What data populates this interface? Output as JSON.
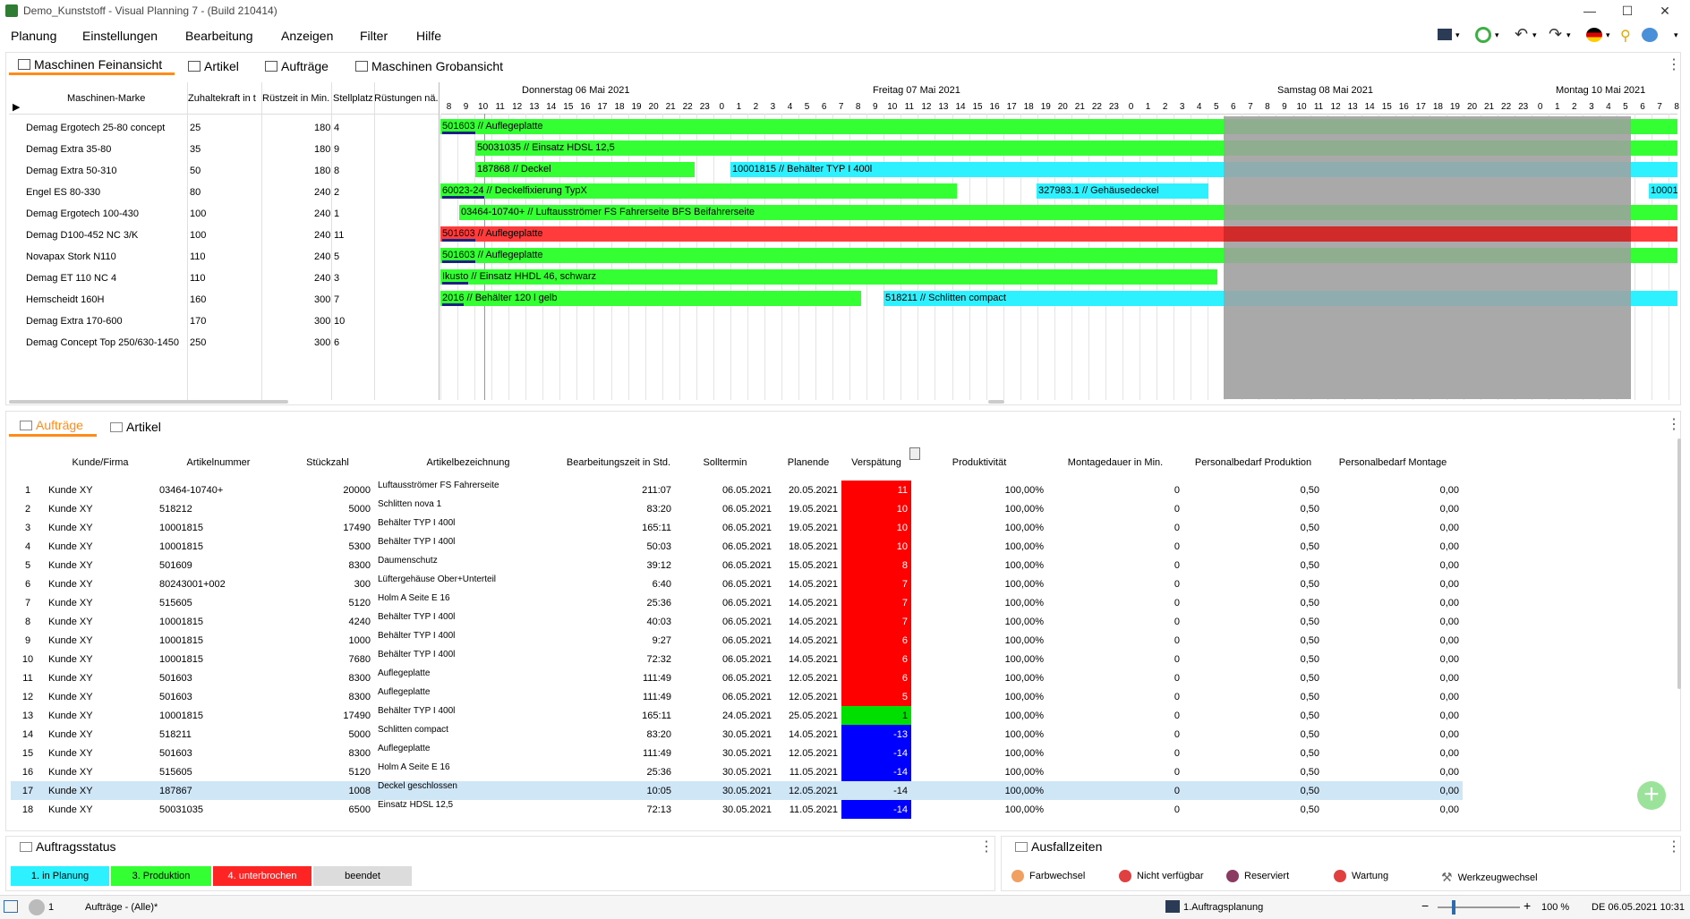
{
  "window": {
    "title": "Demo_Kunststoff - Visual Planning 7 - (Build 210414)"
  },
  "menu": [
    "Planung",
    "Einstellungen",
    "Bearbeitung",
    "Anzeigen",
    "Filter",
    "Hilfe"
  ],
  "top_tabs": [
    "Maschinen Feinansicht",
    "Artikel",
    "Aufträge",
    "Maschinen Grobansicht"
  ],
  "machine_headers": [
    "Maschinen-Marke",
    "Zuhaltekraft in t",
    "Rüstzeit in Min.",
    "Stellplatz",
    "Rüstungen nä."
  ],
  "machines": [
    {
      "name": "Demag Ergotech 25-80 concept",
      "force": "25",
      "setup": "180",
      "place": "4"
    },
    {
      "name": "Demag Extra 35-80",
      "force": "35",
      "setup": "180",
      "place": "9"
    },
    {
      "name": "Demag Extra 50-310",
      "force": "50",
      "setup": "180",
      "place": "8"
    },
    {
      "name": "Engel ES 80-330",
      "force": "80",
      "setup": "240",
      "place": "2"
    },
    {
      "name": "Demag Ergotech 100-430",
      "force": "100",
      "setup": "240",
      "place": "1"
    },
    {
      "name": "Demag D100-452 NC 3/K",
      "force": "100",
      "setup": "240",
      "place": "11"
    },
    {
      "name": "Novapax Stork N110",
      "force": "110",
      "setup": "240",
      "place": "5"
    },
    {
      "name": "Demag ET 110 NC 4",
      "force": "110",
      "setup": "240",
      "place": "3"
    },
    {
      "name": "Hemscheidt 160H",
      "force": "160",
      "setup": "300",
      "place": "7"
    },
    {
      "name": "Demag Extra 170-600",
      "force": "170",
      "setup": "300",
      "place": "10"
    },
    {
      "name": "Demag Concept Top 250/630-1450",
      "force": "250",
      "setup": "300",
      "place": "6"
    }
  ],
  "days": [
    "Donnerstag 06 Mai 2021",
    "Freitag 07 Mai 2021",
    "Samstag 08 Mai 2021",
    "Montag 10 Mai 2021"
  ],
  "hours": [
    "8",
    "9",
    "10",
    "11",
    "12",
    "13",
    "14",
    "15",
    "16",
    "17",
    "18",
    "19",
    "20",
    "21",
    "22",
    "23",
    "0",
    "1",
    "2",
    "3",
    "4",
    "5",
    "6",
    "7",
    "8",
    "9",
    "10",
    "11",
    "12",
    "13",
    "14",
    "15",
    "16",
    "17",
    "18",
    "19",
    "20",
    "21",
    "22",
    "23",
    "0",
    "1",
    "2",
    "3",
    "4",
    "5",
    "6",
    "7",
    "8",
    "9",
    "10",
    "11",
    "12",
    "13",
    "14",
    "15",
    "16",
    "17",
    "18",
    "19",
    "20",
    "21",
    "22",
    "23",
    "0",
    "1",
    "2",
    "3",
    "4",
    "5",
    "6",
    "7",
    "8"
  ],
  "gantt_bars": [
    {
      "row": 0,
      "label_u": "501603",
      "label": " // Auflegeplatte",
      "color": "green"
    },
    {
      "row": 1,
      "label_u": "",
      "label": "50031035 // Einsatz HDSL 12,5",
      "color": "green"
    },
    {
      "row": 2,
      "label_u": "",
      "label": "187868 // Deckel",
      "color": "green"
    },
    {
      "row": 2,
      "label_u": "",
      "label": "10001815 // Behälter TYP I 400l",
      "color": "cyan"
    },
    {
      "row": 3,
      "label_u": "60023-24",
      "label": " // Deckelfixierung TypX",
      "color": "green"
    },
    {
      "row": 3,
      "label_u": "",
      "label": "327983.1 // Gehäusedeckel",
      "color": "cyan"
    },
    {
      "row": 3,
      "label_u": "",
      "label": "10001",
      "color": "cyan"
    },
    {
      "row": 4,
      "label_u": "",
      "label": "03464-10740+ // Luftausströmer FS Fahrerseite BFS Beifahrerseite",
      "color": "green"
    },
    {
      "row": 5,
      "label_u": "501603",
      "label": " // Auflegeplatte",
      "color": "red"
    },
    {
      "row": 6,
      "label_u": "501603",
      "label": " // Auflegeplatte",
      "color": "green"
    },
    {
      "row": 7,
      "label_u": "Ikusto",
      "label": " // Einsatz HHDL 46, schwarz",
      "color": "green"
    },
    {
      "row": 8,
      "label_u": "2016",
      "label": " // Behälter 120 l gelb",
      "color": "green"
    },
    {
      "row": 8,
      "label_u": "",
      "label": "518211 // Schlitten compact",
      "color": "cyan"
    }
  ],
  "bottom_tabs": [
    "Aufträge",
    "Artikel"
  ],
  "order_headers": [
    "Kunde/Firma",
    "Artikelnummer",
    "Stückzahl",
    "Artikelbezeichnung",
    "Bearbeitungszeit in Std.",
    "Solltermin",
    "Planende",
    "Verspätung",
    "Produktivität",
    "Montagedauer in Min.",
    "Personalbedarf Produktion",
    "Personalbedarf Montage"
  ],
  "orders": [
    {
      "n": "1",
      "kunde": "Kunde XY",
      "art": "03464-10740+",
      "qty": "20000",
      "bez": "Luftausströmer FS Fahrerseite",
      "zeit": "211:07",
      "soll": "06.05.2021",
      "plan": "20.05.2021",
      "late": "11",
      "status": "red",
      "prod": "100,00%",
      "mont": "0",
      "pp": "0,50",
      "pm": "0,00"
    },
    {
      "n": "2",
      "kunde": "Kunde XY",
      "art": "518212",
      "qty": "5000",
      "bez": "Schlitten nova 1",
      "zeit": "83:20",
      "soll": "06.05.2021",
      "plan": "19.05.2021",
      "late": "10",
      "status": "red",
      "prod": "100,00%",
      "mont": "0",
      "pp": "0,50",
      "pm": "0,00"
    },
    {
      "n": "3",
      "kunde": "Kunde XY",
      "art": "10001815",
      "qty": "17490",
      "bez": "Behälter TYP I 400l",
      "zeit": "165:11",
      "soll": "06.05.2021",
      "plan": "19.05.2021",
      "late": "10",
      "status": "red",
      "prod": "100,00%",
      "mont": "0",
      "pp": "0,50",
      "pm": "0,00"
    },
    {
      "n": "4",
      "kunde": "Kunde XY",
      "art": "10001815",
      "qty": "5300",
      "bez": "Behälter TYP I 400l",
      "zeit": "50:03",
      "soll": "06.05.2021",
      "plan": "18.05.2021",
      "late": "10",
      "status": "red",
      "prod": "100,00%",
      "mont": "0",
      "pp": "0,50",
      "pm": "0,00"
    },
    {
      "n": "5",
      "kunde": "Kunde XY",
      "art": "501609",
      "qty": "8300",
      "bez": "Daumenschutz",
      "zeit": "39:12",
      "soll": "06.05.2021",
      "plan": "15.05.2021",
      "late": "8",
      "status": "red",
      "prod": "100,00%",
      "mont": "0",
      "pp": "0,50",
      "pm": "0,00"
    },
    {
      "n": "6",
      "kunde": "Kunde XY",
      "art": "80243001+002",
      "qty": "300",
      "bez": "Lüftergehäuse Ober+Unterteil",
      "zeit": "6:40",
      "soll": "06.05.2021",
      "plan": "14.05.2021",
      "late": "7",
      "status": "red",
      "prod": "100,00%",
      "mont": "0",
      "pp": "0,50",
      "pm": "0,00"
    },
    {
      "n": "7",
      "kunde": "Kunde XY",
      "art": "515605",
      "qty": "5120",
      "bez": "Holm A Seite E 16",
      "zeit": "25:36",
      "soll": "06.05.2021",
      "plan": "14.05.2021",
      "late": "7",
      "status": "red",
      "prod": "100,00%",
      "mont": "0",
      "pp": "0,50",
      "pm": "0,00"
    },
    {
      "n": "8",
      "kunde": "Kunde XY",
      "art": "10001815",
      "qty": "4240",
      "bez": "Behälter TYP I 400l",
      "zeit": "40:03",
      "soll": "06.05.2021",
      "plan": "14.05.2021",
      "late": "7",
      "status": "red",
      "prod": "100,00%",
      "mont": "0",
      "pp": "0,50",
      "pm": "0,00"
    },
    {
      "n": "9",
      "kunde": "Kunde XY",
      "art": "10001815",
      "qty": "1000",
      "bez": "Behälter TYP I 400l",
      "zeit": "9:27",
      "soll": "06.05.2021",
      "plan": "14.05.2021",
      "late": "6",
      "status": "red",
      "prod": "100,00%",
      "mont": "0",
      "pp": "0,50",
      "pm": "0,00"
    },
    {
      "n": "10",
      "kunde": "Kunde XY",
      "art": "10001815",
      "qty": "7680",
      "bez": "Behälter TYP I 400l",
      "zeit": "72:32",
      "soll": "06.05.2021",
      "plan": "14.05.2021",
      "late": "6",
      "status": "red",
      "prod": "100,00%",
      "mont": "0",
      "pp": "0,50",
      "pm": "0,00"
    },
    {
      "n": "11",
      "kunde": "Kunde XY",
      "art": "501603",
      "qty": "8300",
      "bez": "Auflegeplatte",
      "zeit": "111:49",
      "soll": "06.05.2021",
      "plan": "12.05.2021",
      "late": "6",
      "status": "red",
      "prod": "100,00%",
      "mont": "0",
      "pp": "0,50",
      "pm": "0,00"
    },
    {
      "n": "12",
      "kunde": "Kunde XY",
      "art": "501603",
      "qty": "8300",
      "bez": "Auflegeplatte",
      "zeit": "111:49",
      "soll": "06.05.2021",
      "plan": "12.05.2021",
      "late": "5",
      "status": "red",
      "prod": "100,00%",
      "mont": "0",
      "pp": "0,50",
      "pm": "0,00"
    },
    {
      "n": "13",
      "kunde": "Kunde XY",
      "art": "10001815",
      "qty": "17490",
      "bez": "Behälter TYP I 400l",
      "zeit": "165:11",
      "soll": "24.05.2021",
      "plan": "25.05.2021",
      "late": "1",
      "status": "green",
      "prod": "100,00%",
      "mont": "0",
      "pp": "0,50",
      "pm": "0,00"
    },
    {
      "n": "14",
      "kunde": "Kunde XY",
      "art": "518211",
      "qty": "5000",
      "bez": "Schlitten compact",
      "zeit": "83:20",
      "soll": "30.05.2021",
      "plan": "14.05.2021",
      "late": "-13",
      "status": "blue",
      "prod": "100,00%",
      "mont": "0",
      "pp": "0,50",
      "pm": "0,00"
    },
    {
      "n": "15",
      "kunde": "Kunde XY",
      "art": "501603",
      "qty": "8300",
      "bez": "Auflegeplatte",
      "zeit": "111:49",
      "soll": "30.05.2021",
      "plan": "12.05.2021",
      "late": "-14",
      "status": "blue",
      "prod": "100,00%",
      "mont": "0",
      "pp": "0,50",
      "pm": "0,00"
    },
    {
      "n": "16",
      "kunde": "Kunde XY",
      "art": "515605",
      "qty": "5120",
      "bez": "Holm A Seite E 16",
      "zeit": "25:36",
      "soll": "30.05.2021",
      "plan": "11.05.2021",
      "late": "-14",
      "status": "blue",
      "prod": "100,00%",
      "mont": "0",
      "pp": "0,50",
      "pm": "0,00"
    },
    {
      "n": "17",
      "kunde": "Kunde XY",
      "art": "187867",
      "qty": "1008",
      "bez": "Deckel geschlossen",
      "zeit": "10:05",
      "soll": "30.05.2021",
      "plan": "12.05.2021",
      "late": "-14",
      "status": "selected",
      "prod": "100,00%",
      "mont": "0",
      "pp": "0,50",
      "pm": "0,00"
    },
    {
      "n": "18",
      "kunde": "Kunde XY",
      "art": "50031035",
      "qty": "6500",
      "bez": "Einsatz HDSL 12,5",
      "zeit": "72:13",
      "soll": "30.05.2021",
      "plan": "11.05.2021",
      "late": "-14",
      "status": "blue",
      "prod": "100,00%",
      "mont": "0",
      "pp": "0,50",
      "pm": "0,00"
    }
  ],
  "auftragsstatus": {
    "title": "Auftragsstatus",
    "chips": [
      {
        "label": "1. in Planung",
        "color": "#2ef1ff"
      },
      {
        "label": "3. Produktion",
        "color": "#33ff33"
      },
      {
        "label": "4. unterbrochen",
        "color": "#ff2424"
      },
      {
        "label": "beendet",
        "color": "#dcdcdc"
      }
    ]
  },
  "ausfallzeiten": {
    "title": "Ausfallzeiten",
    "items": [
      "Farbwechsel",
      "Nicht verfügbar",
      "Reserviert",
      "Wartung",
      "Werkzeugwechsel"
    ]
  },
  "statusbar": {
    "count": "1",
    "filter": "Aufträge - (Alle)*",
    "planning": "1.Auftragsplanung",
    "zoom": "100 %",
    "datetime": "DE 06.05.2021 10:31"
  },
  "colors": {
    "green": "#33ff33",
    "cyan": "#2ef1ff",
    "red": "#ff3b3b",
    "blue": "#0000ff",
    "orange": "#ff9a2e",
    "selected": "#cfe6f7"
  }
}
